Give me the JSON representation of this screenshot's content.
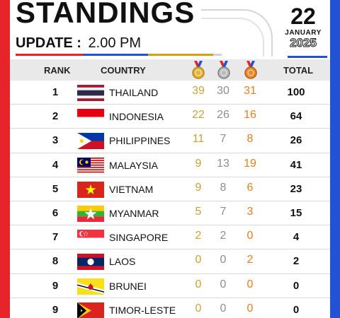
{
  "header": {
    "title": "STANDINGS",
    "update_label": "UPDATE :",
    "update_time": "2.00 PM",
    "date_day": "22",
    "date_month": "JANUARY",
    "date_year": "2025"
  },
  "columns": {
    "rank": "RANK",
    "country": "COUNTRY",
    "total": "TOTAL"
  },
  "medal_icons": [
    "gold-medal-icon",
    "silver-medal-icon",
    "bronze-medal-icon"
  ],
  "colors": {
    "red": "#e8242b",
    "blue": "#2352d6",
    "gold": "#c9a23a",
    "silver": "#8e8e8e",
    "bronze": "#e67e22"
  },
  "rows": [
    {
      "rank": "1",
      "country": "THAILAND",
      "gold": "39",
      "silver": "30",
      "bronze": "31",
      "total": "100"
    },
    {
      "rank": "2",
      "country": "INDONESIA",
      "gold": "22",
      "silver": "26",
      "bronze": "16",
      "total": "64"
    },
    {
      "rank": "3",
      "country": "PHILIPPINES",
      "gold": "11",
      "silver": "7",
      "bronze": "8",
      "total": "26"
    },
    {
      "rank": "4",
      "country": "MALAYSIA",
      "gold": "9",
      "silver": "13",
      "bronze": "19",
      "total": "41"
    },
    {
      "rank": "5",
      "country": "VIETNAM",
      "gold": "9",
      "silver": "8",
      "bronze": "6",
      "total": "23"
    },
    {
      "rank": "6",
      "country": "MYANMAR",
      "gold": "5",
      "silver": "7",
      "bronze": "3",
      "total": "15"
    },
    {
      "rank": "7",
      "country": "SINGAPORE",
      "gold": "2",
      "silver": "2",
      "bronze": "0",
      "total": "4"
    },
    {
      "rank": "8",
      "country": "LAOS",
      "gold": "0",
      "silver": "0",
      "bronze": "2",
      "total": "2"
    },
    {
      "rank": "9",
      "country": "BRUNEI",
      "gold": "0",
      "silver": "0",
      "bronze": "0",
      "total": "0"
    },
    {
      "rank": "9",
      "country": "TIMOR-LESTE",
      "gold": "0",
      "silver": "0",
      "bronze": "0",
      "total": "0"
    }
  ]
}
